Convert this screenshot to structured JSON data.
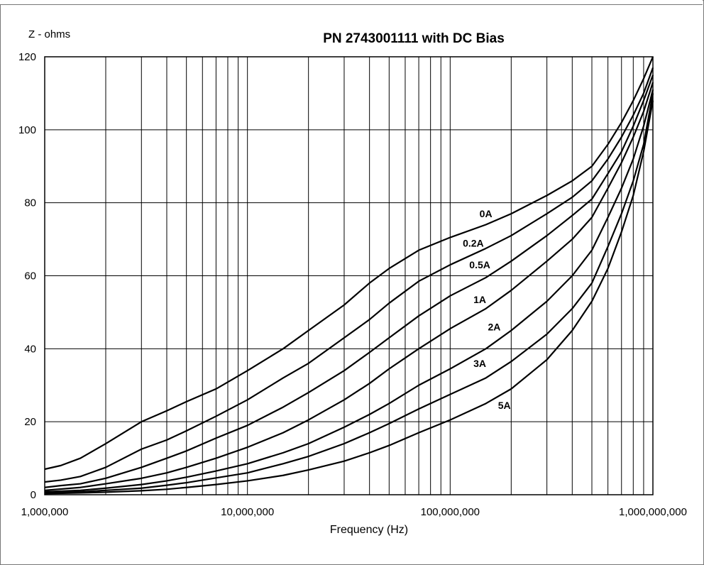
{
  "chart_data": {
    "type": "line",
    "title": "PN 2743001111 with DC Bias",
    "ylabel": "Z - ohms",
    "xlabel": "Frequency (Hz)",
    "xscale": "log",
    "xlim": [
      1000000,
      1000000000
    ],
    "ylim": [
      0,
      120
    ],
    "grid": true,
    "xticks": [
      {
        "value": 1000000,
        "label": "1,000,000"
      },
      {
        "value": 10000000,
        "label": "10,000,000"
      },
      {
        "value": 100000000,
        "label": "100,000,000"
      },
      {
        "value": 1000000000,
        "label": "1,000,000,000"
      }
    ],
    "yticks": [
      {
        "value": 0,
        "label": "0"
      },
      {
        "value": 20,
        "label": "20"
      },
      {
        "value": 40,
        "label": "40"
      },
      {
        "value": 60,
        "label": "60"
      },
      {
        "value": 80,
        "label": "80"
      },
      {
        "value": 100,
        "label": "100"
      },
      {
        "value": 120,
        "label": "120"
      }
    ],
    "series": [
      {
        "name": "0A",
        "label_pos": {
          "x": 150000000,
          "y": 76
        },
        "points": [
          [
            1000000,
            7
          ],
          [
            1200000,
            8
          ],
          [
            1500000,
            10
          ],
          [
            2000000,
            14
          ],
          [
            3000000,
            20
          ],
          [
            4000000,
            23
          ],
          [
            5000000,
            25.5
          ],
          [
            7000000,
            29
          ],
          [
            10000000,
            34
          ],
          [
            15000000,
            40
          ],
          [
            20000000,
            45
          ],
          [
            30000000,
            52
          ],
          [
            40000000,
            58
          ],
          [
            50000000,
            62
          ],
          [
            70000000,
            67
          ],
          [
            100000000,
            70.5
          ],
          [
            150000000,
            74
          ],
          [
            200000000,
            77
          ],
          [
            300000000,
            82
          ],
          [
            400000000,
            86
          ],
          [
            500000000,
            90
          ],
          [
            600000000,
            96
          ],
          [
            700000000,
            102
          ],
          [
            800000000,
            108
          ],
          [
            900000000,
            114
          ],
          [
            1000000000,
            120
          ]
        ]
      },
      {
        "name": "0.2A",
        "label_pos": {
          "x": 130000000,
          "y": 68
        },
        "points": [
          [
            1000000,
            3.5
          ],
          [
            1200000,
            4
          ],
          [
            1500000,
            5
          ],
          [
            2000000,
            7.5
          ],
          [
            3000000,
            12.5
          ],
          [
            4000000,
            15
          ],
          [
            5000000,
            17.5
          ],
          [
            7000000,
            21.5
          ],
          [
            10000000,
            26
          ],
          [
            15000000,
            32
          ],
          [
            20000000,
            36
          ],
          [
            30000000,
            43
          ],
          [
            40000000,
            48
          ],
          [
            50000000,
            52.5
          ],
          [
            70000000,
            58.5
          ],
          [
            100000000,
            63
          ],
          [
            150000000,
            67.5
          ],
          [
            200000000,
            71
          ],
          [
            300000000,
            77
          ],
          [
            400000000,
            81.5
          ],
          [
            500000000,
            86
          ],
          [
            600000000,
            92
          ],
          [
            700000000,
            98
          ],
          [
            800000000,
            104
          ],
          [
            900000000,
            110
          ],
          [
            1000000000,
            117
          ]
        ]
      },
      {
        "name": "0.5A",
        "label_pos": {
          "x": 140000000,
          "y": 62
        },
        "points": [
          [
            1000000,
            2
          ],
          [
            1200000,
            2.5
          ],
          [
            1500000,
            3
          ],
          [
            2000000,
            4.5
          ],
          [
            3000000,
            7.5
          ],
          [
            4000000,
            10
          ],
          [
            5000000,
            12
          ],
          [
            7000000,
            15.5
          ],
          [
            10000000,
            19
          ],
          [
            15000000,
            24
          ],
          [
            20000000,
            28
          ],
          [
            30000000,
            34
          ],
          [
            40000000,
            39
          ],
          [
            50000000,
            43
          ],
          [
            70000000,
            49
          ],
          [
            100000000,
            54.5
          ],
          [
            150000000,
            59.5
          ],
          [
            200000000,
            64
          ],
          [
            300000000,
            71
          ],
          [
            400000000,
            76.5
          ],
          [
            500000000,
            81
          ],
          [
            600000000,
            88
          ],
          [
            700000000,
            94
          ],
          [
            800000000,
            101
          ],
          [
            900000000,
            108
          ],
          [
            1000000000,
            115
          ]
        ]
      },
      {
        "name": "1A",
        "label_pos": {
          "x": 140000000,
          "y": 52.5
        },
        "points": [
          [
            1000000,
            1.2
          ],
          [
            1500000,
            2
          ],
          [
            2000000,
            3
          ],
          [
            3000000,
            4.5
          ],
          [
            4000000,
            6
          ],
          [
            5000000,
            7.5
          ],
          [
            7000000,
            10
          ],
          [
            10000000,
            13
          ],
          [
            15000000,
            17
          ],
          [
            20000000,
            20.5
          ],
          [
            30000000,
            26
          ],
          [
            40000000,
            30.5
          ],
          [
            50000000,
            34.5
          ],
          [
            70000000,
            40
          ],
          [
            100000000,
            45.5
          ],
          [
            150000000,
            51
          ],
          [
            200000000,
            56
          ],
          [
            300000000,
            64
          ],
          [
            400000000,
            70
          ],
          [
            500000000,
            76
          ],
          [
            600000000,
            84
          ],
          [
            700000000,
            91
          ],
          [
            800000000,
            98
          ],
          [
            900000000,
            105
          ],
          [
            1000000000,
            113
          ]
        ]
      },
      {
        "name": "2A",
        "label_pos": {
          "x": 165000000,
          "y": 45
        },
        "points": [
          [
            1000000,
            0.8
          ],
          [
            1500000,
            1.2
          ],
          [
            2000000,
            1.8
          ],
          [
            3000000,
            2.8
          ],
          [
            4000000,
            3.8
          ],
          [
            5000000,
            4.8
          ],
          [
            7000000,
            6.5
          ],
          [
            10000000,
            8.5
          ],
          [
            15000000,
            11.5
          ],
          [
            20000000,
            14
          ],
          [
            30000000,
            18.5
          ],
          [
            40000000,
            22
          ],
          [
            50000000,
            25
          ],
          [
            70000000,
            30
          ],
          [
            100000000,
            34.5
          ],
          [
            150000000,
            40
          ],
          [
            200000000,
            45
          ],
          [
            300000000,
            53
          ],
          [
            400000000,
            60
          ],
          [
            500000000,
            67
          ],
          [
            600000000,
            76
          ],
          [
            700000000,
            84
          ],
          [
            800000000,
            92
          ],
          [
            900000000,
            101
          ],
          [
            1000000000,
            111
          ]
        ]
      },
      {
        "name": "3A",
        "label_pos": {
          "x": 140000000,
          "y": 35
        },
        "points": [
          [
            1000000,
            0.5
          ],
          [
            1500000,
            0.8
          ],
          [
            2000000,
            1.2
          ],
          [
            3000000,
            1.8
          ],
          [
            4000000,
            2.6
          ],
          [
            5000000,
            3.3
          ],
          [
            7000000,
            4.6
          ],
          [
            10000000,
            6
          ],
          [
            15000000,
            8.5
          ],
          [
            20000000,
            10.5
          ],
          [
            30000000,
            14
          ],
          [
            40000000,
            17
          ],
          [
            50000000,
            19.5
          ],
          [
            70000000,
            23.5
          ],
          [
            100000000,
            27.5
          ],
          [
            150000000,
            32
          ],
          [
            200000000,
            36.5
          ],
          [
            300000000,
            44
          ],
          [
            400000000,
            51
          ],
          [
            500000000,
            58
          ],
          [
            600000000,
            68
          ],
          [
            700000000,
            77
          ],
          [
            800000000,
            86
          ],
          [
            900000000,
            96
          ],
          [
            1000000000,
            110
          ]
        ]
      },
      {
        "name": "5A",
        "label_pos": {
          "x": 185000000,
          "y": 23.5
        },
        "points": [
          [
            1000000,
            0.3
          ],
          [
            1500000,
            0.5
          ],
          [
            2000000,
            0.7
          ],
          [
            3000000,
            1.1
          ],
          [
            4000000,
            1.5
          ],
          [
            5000000,
            2
          ],
          [
            7000000,
            2.8
          ],
          [
            10000000,
            3.8
          ],
          [
            15000000,
            5.3
          ],
          [
            20000000,
            6.8
          ],
          [
            30000000,
            9.2
          ],
          [
            40000000,
            11.5
          ],
          [
            50000000,
            13.5
          ],
          [
            70000000,
            17
          ],
          [
            100000000,
            20.5
          ],
          [
            150000000,
            25
          ],
          [
            200000000,
            29
          ],
          [
            300000000,
            37
          ],
          [
            400000000,
            45
          ],
          [
            500000000,
            53
          ],
          [
            600000000,
            62
          ],
          [
            700000000,
            72
          ],
          [
            800000000,
            82
          ],
          [
            900000000,
            94
          ],
          [
            1000000000,
            108
          ]
        ]
      }
    ]
  }
}
